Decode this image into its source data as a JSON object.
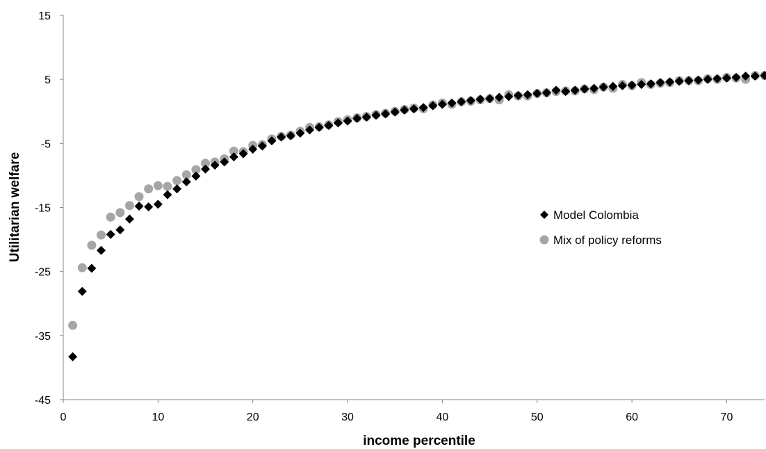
{
  "chart_data": {
    "type": "scatter",
    "title": "",
    "xlabel": "income percentile",
    "ylabel": "Utilitarian welfare",
    "xlim": [
      0,
      74
    ],
    "ylim": [
      -45,
      15
    ],
    "xticks": [
      0,
      10,
      20,
      30,
      40,
      50,
      60,
      70
    ],
    "yticks": [
      -45,
      -35,
      -25,
      -15,
      -5,
      5,
      15
    ],
    "grid": false,
    "legend_position": "right-center",
    "x": [
      1,
      2,
      3,
      4,
      5,
      6,
      7,
      8,
      9,
      10,
      11,
      12,
      13,
      14,
      15,
      16,
      17,
      18,
      19,
      20,
      21,
      22,
      23,
      24,
      25,
      26,
      27,
      28,
      29,
      30,
      31,
      32,
      33,
      34,
      35,
      36,
      37,
      38,
      39,
      40,
      41,
      42,
      43,
      44,
      45,
      46,
      47,
      48,
      49,
      50,
      51,
      52,
      53,
      54,
      55,
      56,
      57,
      58,
      59,
      60,
      61,
      62,
      63,
      64,
      65,
      66,
      67,
      68,
      69,
      70,
      71,
      72,
      73,
      74
    ],
    "series": [
      {
        "name": "Model Colombia",
        "marker": "diamond",
        "color": "#000000",
        "values": [
          -38.3,
          -28.1,
          -24.5,
          -21.7,
          -19.2,
          -18.5,
          -16.8,
          -14.8,
          -14.9,
          -14.5,
          -13.0,
          -12.1,
          -11.0,
          -10.1,
          -9.0,
          -8.4,
          -7.9,
          -7.1,
          -6.6,
          -5.9,
          -5.4,
          -4.6,
          -4.0,
          -3.8,
          -3.4,
          -2.9,
          -2.5,
          -2.2,
          -1.8,
          -1.5,
          -1.1,
          -0.9,
          -0.6,
          -0.4,
          -0.1,
          0.2,
          0.4,
          0.6,
          0.9,
          1.1,
          1.3,
          1.5,
          1.7,
          1.9,
          2.0,
          2.2,
          2.3,
          2.5,
          2.6,
          2.8,
          2.9,
          3.3,
          3.1,
          3.3,
          3.5,
          3.6,
          3.8,
          3.9,
          4.0,
          4.1,
          4.2,
          4.3,
          4.5,
          4.6,
          4.7,
          4.8,
          4.9,
          5.0,
          5.1,
          5.2,
          5.3,
          5.5,
          5.5,
          5.6
        ]
      },
      {
        "name": "Mix of policy reforms",
        "marker": "circle",
        "color": "#a6a6a6",
        "values": [
          -33.4,
          -24.4,
          -20.9,
          -19.3,
          -16.5,
          -15.8,
          -14.7,
          -13.3,
          -12.1,
          -11.6,
          -11.7,
          -10.8,
          -9.9,
          -9.1,
          -8.1,
          -7.9,
          -7.4,
          -6.2,
          -6.3,
          -5.3,
          -5.2,
          -4.3,
          -3.9,
          -3.7,
          -3.1,
          -2.5,
          -2.4,
          -2.1,
          -1.6,
          -1.3,
          -1.0,
          -0.8,
          -0.5,
          -0.3,
          0.0,
          0.3,
          0.5,
          0.4,
          1.0,
          1.3,
          1.1,
          1.5,
          1.6,
          1.8,
          2.0,
          1.8,
          2.6,
          2.4,
          2.4,
          2.8,
          2.9,
          3.1,
          3.2,
          3.2,
          3.5,
          3.4,
          3.8,
          3.6,
          4.2,
          4.0,
          4.5,
          4.2,
          4.4,
          4.5,
          4.8,
          4.8,
          4.8,
          5.1,
          5.0,
          5.3,
          5.2,
          5.0,
          5.6,
          5.6
        ]
      }
    ]
  }
}
